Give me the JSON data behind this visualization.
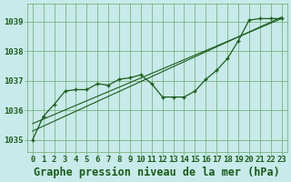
{
  "background_color": "#c8eaea",
  "plot_bg_color": "#c8eaea",
  "grid_color": "#6aaa6a",
  "line_color": "#1a5c1a",
  "title": "Graphe pression niveau de la mer (hPa)",
  "xlim": [
    -0.5,
    23.5
  ],
  "ylim": [
    1034.6,
    1039.6
  ],
  "yticks": [
    1035,
    1036,
    1037,
    1038,
    1039
  ],
  "xticks": [
    0,
    1,
    2,
    3,
    4,
    5,
    6,
    7,
    8,
    9,
    10,
    11,
    12,
    13,
    14,
    15,
    16,
    17,
    18,
    19,
    20,
    21,
    22,
    23
  ],
  "main_series": [
    1035.0,
    1035.8,
    1036.2,
    1036.65,
    1036.7,
    1036.7,
    1036.9,
    1036.85,
    1037.05,
    1037.1,
    1037.2,
    1036.9,
    1036.45,
    1036.45,
    1036.45,
    1036.65,
    1037.05,
    1037.35,
    1037.75,
    1038.35,
    1039.05,
    1039.1,
    1039.1,
    1039.1
  ],
  "trend1_x": [
    0,
    23
  ],
  "trend1_y": [
    1035.3,
    1039.15
  ],
  "trend2_x": [
    0,
    23
  ],
  "trend2_y": [
    1035.55,
    1039.1
  ],
  "font_color": "#1a5c1a",
  "title_fontsize": 8.5,
  "tick_fontsize": 6.5
}
